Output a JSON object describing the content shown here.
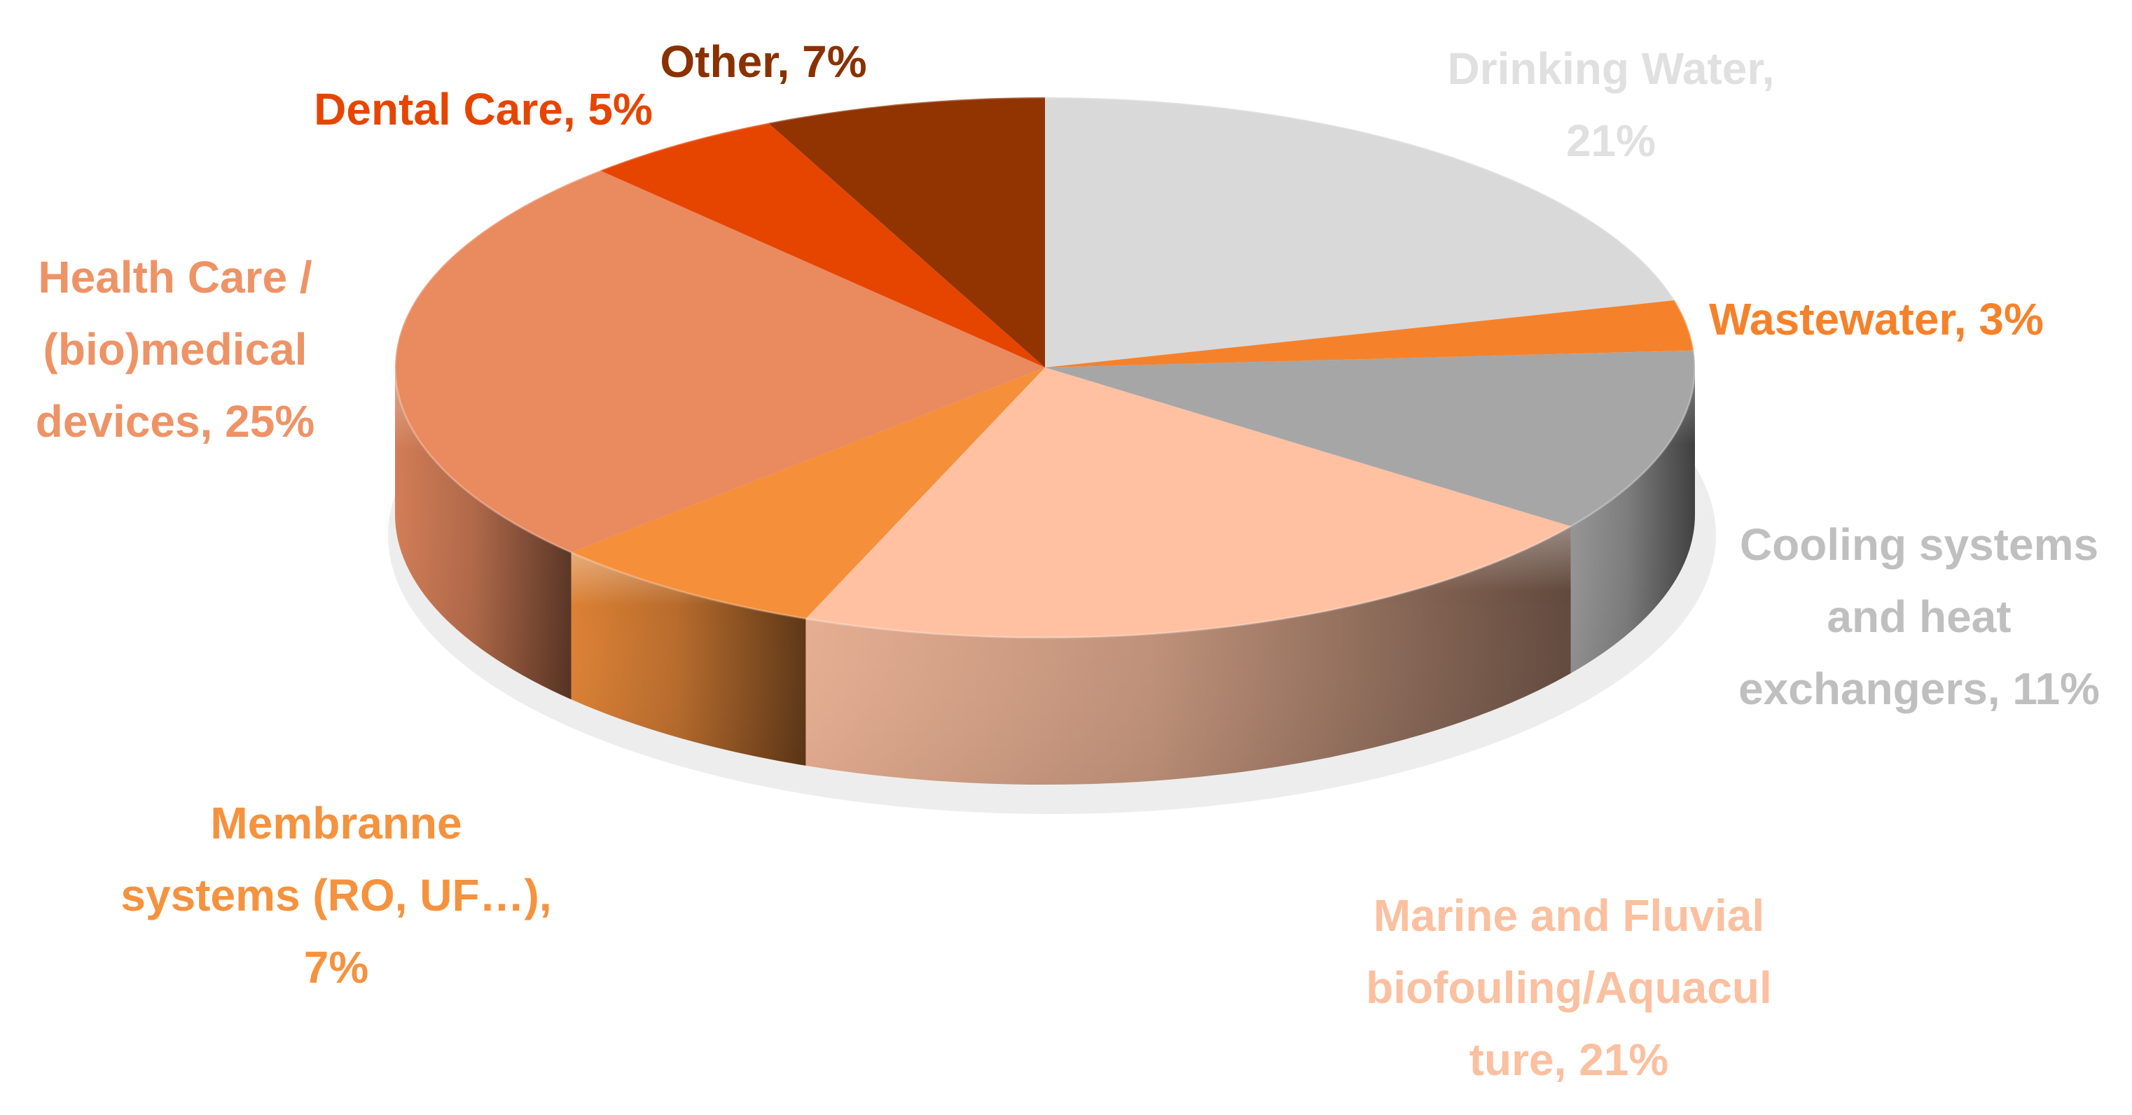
{
  "chart_data": {
    "type": "pie",
    "style": "3d-exploded",
    "title": "",
    "slices": [
      {
        "label_lines": [
          "Drinking Water,",
          "21%"
        ],
        "name": "Drinking Water",
        "value": 21,
        "color": "#D9D9D9",
        "label_color": "#E0E0E0"
      },
      {
        "label_lines": [
          "Wastewater, 3%"
        ],
        "name": "Wastewater",
        "value": 3,
        "color": "#F5822B",
        "label_color": "#F5822B"
      },
      {
        "label_lines": [
          "Cooling systems",
          "and heat",
          "exchangers, 11%"
        ],
        "name": "Cooling systems and heat exchangers",
        "value": 11,
        "color": "#A6A6A6",
        "label_color": "#BFBFBF"
      },
      {
        "label_lines": [
          "Marine and Fluvial",
          "biofouling/Aquacul",
          "ture, 21%"
        ],
        "name": "Marine and Fluvial biofouling/Aquaculture",
        "value": 21,
        "color": "#FFC1A1",
        "label_color": "#FBC0A0"
      },
      {
        "label_lines": [
          "Membranne",
          "systems (RO, UF…),",
          "7%"
        ],
        "name": "Membranne systems (RO, UF…)",
        "value": 7,
        "color": "#F58F3A",
        "label_color": "#F5923E"
      },
      {
        "label_lines": [
          "Health Care /",
          "(bio)medical",
          "devices, 25%"
        ],
        "name": "Health Care / (bio)medical devices",
        "value": 25,
        "color": "#EA8A5F",
        "label_color": "#EE9366"
      },
      {
        "label_lines": [
          "Dental Care, 5%"
        ],
        "name": "Dental Care",
        "value": 5,
        "color": "#E64500",
        "label_color": "#E64500"
      },
      {
        "label_lines": [
          "Other, 7%"
        ],
        "name": "Other",
        "value": 7,
        "color": "#913402",
        "label_color": "#8A3100"
      }
    ]
  }
}
